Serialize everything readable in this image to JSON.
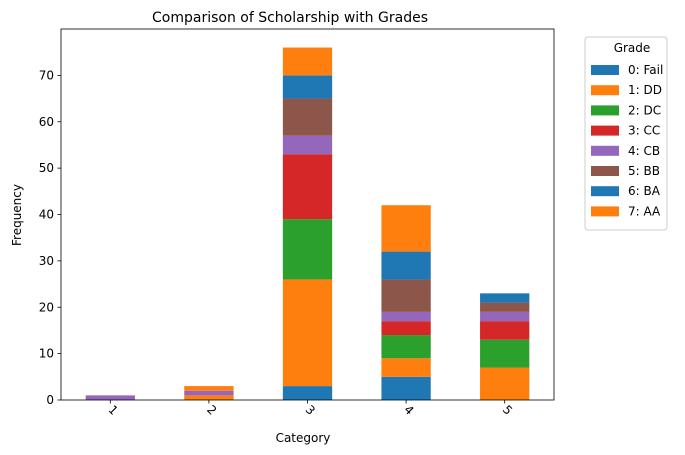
{
  "chart_data": {
    "type": "bar",
    "stacked": true,
    "title": "Comparison of Scholarship with Grades",
    "xlabel": "Category",
    "ylabel": "Frequency",
    "categories": [
      "1",
      "2",
      "3",
      "4",
      "5"
    ],
    "ylim": [
      0,
      80
    ],
    "yticks": [
      0,
      10,
      20,
      30,
      40,
      50,
      60,
      70
    ],
    "x_tick_rotation": 45,
    "grid": false,
    "legend": {
      "title": "Grade",
      "placement": "outside-right"
    },
    "series": [
      {
        "name": "0: Fail",
        "color": "#1f77b4",
        "values": [
          0,
          0,
          3,
          5,
          0
        ]
      },
      {
        "name": "1: DD",
        "color": "#ff7f0e",
        "values": [
          0,
          1,
          23,
          4,
          7
        ]
      },
      {
        "name": "2: DC",
        "color": "#2ca02c",
        "values": [
          0,
          0,
          13,
          5,
          6
        ]
      },
      {
        "name": "3: CC",
        "color": "#d62728",
        "values": [
          0,
          0,
          14,
          3,
          4
        ]
      },
      {
        "name": "4: CB",
        "color": "#9467bd",
        "values": [
          1,
          1,
          4,
          2,
          2
        ]
      },
      {
        "name": "5: BB",
        "color": "#8c564b",
        "values": [
          0,
          0,
          8,
          7,
          2
        ]
      },
      {
        "name": "6: BA",
        "color": "#1f77b4",
        "values": [
          0,
          0,
          5,
          6,
          2
        ]
      },
      {
        "name": "7: AA",
        "color": "#ff7f0e",
        "values": [
          0,
          1,
          6,
          10,
          0
        ]
      }
    ]
  }
}
